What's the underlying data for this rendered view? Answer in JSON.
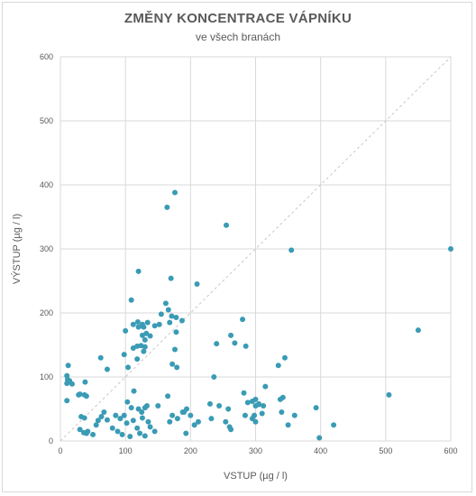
{
  "chart_data": {
    "type": "scatter",
    "title": "ZMĚNY KONCENTRACE VÁPNÍKU",
    "subtitle": "ve všech branách",
    "xlabel": "VSTUP (µg / l)",
    "ylabel": "VÝSTUP (µg / l)",
    "xlim": [
      0,
      600
    ],
    "ylim": [
      0,
      600
    ],
    "x_ticks": [
      "0",
      "100",
      "200",
      "300",
      "400",
      "500",
      "600"
    ],
    "y_ticks": [
      "0",
      "100",
      "200",
      "300",
      "400",
      "500",
      "600"
    ],
    "grid": true,
    "reference_line": "y = x",
    "marker_color": "#3a9bb5",
    "points": [
      [
        12,
        118
      ],
      [
        10,
        102
      ],
      [
        11,
        96
      ],
      [
        14,
        94
      ],
      [
        10,
        90
      ],
      [
        18,
        89
      ],
      [
        10,
        63
      ],
      [
        28,
        72
      ],
      [
        30,
        73
      ],
      [
        38,
        92
      ],
      [
        40,
        70
      ],
      [
        37,
        72
      ],
      [
        32,
        38
      ],
      [
        37,
        36
      ],
      [
        30,
        18
      ],
      [
        36,
        13
      ],
      [
        42,
        15
      ],
      [
        40,
        12
      ],
      [
        50,
        10
      ],
      [
        55,
        25
      ],
      [
        58,
        32
      ],
      [
        63,
        38
      ],
      [
        67,
        45
      ],
      [
        72,
        33
      ],
      [
        80,
        20
      ],
      [
        88,
        15
      ],
      [
        95,
        10
      ],
      [
        62,
        130
      ],
      [
        72,
        112
      ],
      [
        85,
        40
      ],
      [
        92,
        35
      ],
      [
        98,
        40
      ],
      [
        98,
        135
      ],
      [
        100,
        172
      ],
      [
        104,
        115
      ],
      [
        103,
        61
      ],
      [
        109,
        52
      ],
      [
        112,
        32
      ],
      [
        107,
        7
      ],
      [
        102,
        28
      ],
      [
        120,
        50
      ],
      [
        125,
        45
      ],
      [
        130,
        52
      ],
      [
        133,
        55
      ],
      [
        135,
        30
      ],
      [
        138,
        22
      ],
      [
        126,
        36
      ],
      [
        118,
        20
      ],
      [
        122,
        12
      ],
      [
        130,
        8
      ],
      [
        145,
        15
      ],
      [
        113,
        78
      ],
      [
        112,
        145
      ],
      [
        118,
        148
      ],
      [
        126,
        165
      ],
      [
        130,
        158
      ],
      [
        132,
        168
      ],
      [
        128,
        178
      ],
      [
        120,
        178
      ],
      [
        134,
        185
      ],
      [
        126,
        182
      ],
      [
        138,
        164
      ],
      [
        128,
        140
      ],
      [
        124,
        149
      ],
      [
        130,
        147
      ],
      [
        118,
        128
      ],
      [
        112,
        182
      ],
      [
        119,
        186
      ],
      [
        120,
        265
      ],
      [
        109,
        220
      ],
      [
        145,
        180
      ],
      [
        152,
        182
      ],
      [
        155,
        198
      ],
      [
        162,
        215
      ],
      [
        166,
        205
      ],
      [
        171,
        195
      ],
      [
        178,
        193
      ],
      [
        187,
        188
      ],
      [
        168,
        185
      ],
      [
        178,
        170
      ],
      [
        176,
        143
      ],
      [
        172,
        120
      ],
      [
        179,
        115
      ],
      [
        170,
        254
      ],
      [
        164,
        365
      ],
      [
        176,
        388
      ],
      [
        150,
        55
      ],
      [
        165,
        70
      ],
      [
        172,
        40
      ],
      [
        168,
        30
      ],
      [
        180,
        35
      ],
      [
        190,
        45
      ],
      [
        194,
        50
      ],
      [
        188,
        45
      ],
      [
        193,
        12
      ],
      [
        200,
        40
      ],
      [
        206,
        25
      ],
      [
        212,
        30
      ],
      [
        210,
        245
      ],
      [
        232,
        35
      ],
      [
        230,
        58
      ],
      [
        244,
        55
      ],
      [
        240,
        152
      ],
      [
        254,
        30
      ],
      [
        258,
        50
      ],
      [
        260,
        22
      ],
      [
        262,
        18
      ],
      [
        262,
        165
      ],
      [
        268,
        153
      ],
      [
        280,
        190
      ],
      [
        285,
        148
      ],
      [
        282,
        75
      ],
      [
        288,
        60
      ],
      [
        284,
        40
      ],
      [
        295,
        35
      ],
      [
        300,
        30
      ],
      [
        298,
        40
      ],
      [
        300,
        55
      ],
      [
        305,
        57
      ],
      [
        310,
        43
      ],
      [
        312,
        55
      ],
      [
        315,
        85
      ],
      [
        300,
        65
      ],
      [
        305,
        58
      ],
      [
        295,
        62
      ],
      [
        335,
        118
      ],
      [
        345,
        130
      ],
      [
        338,
        65
      ],
      [
        342,
        68
      ],
      [
        350,
        25
      ],
      [
        360,
        40
      ],
      [
        340,
        45
      ],
      [
        355,
        298
      ],
      [
        393,
        52
      ],
      [
        398,
        5
      ],
      [
        420,
        25
      ],
      [
        505,
        72
      ],
      [
        550,
        173
      ],
      [
        600,
        300
      ],
      [
        255,
        337
      ],
      [
        236,
        100
      ]
    ]
  }
}
